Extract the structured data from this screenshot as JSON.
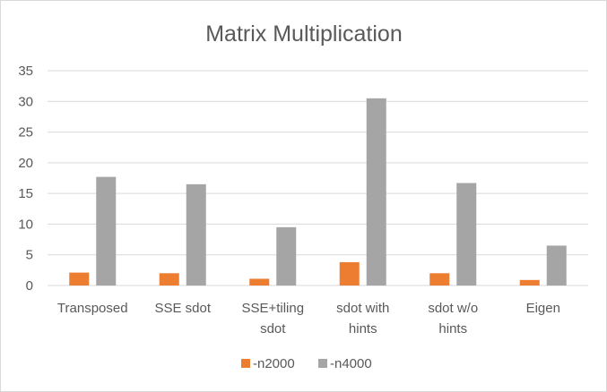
{
  "chart_data": {
    "type": "bar",
    "title": "Matrix Multiplication",
    "xlabel": "",
    "ylabel": "",
    "categories": [
      [
        "Transposed"
      ],
      [
        "SSE sdot"
      ],
      [
        "SSE+tiling",
        "sdot"
      ],
      [
        "sdot with",
        "hints"
      ],
      [
        "sdot w/o",
        "hints"
      ],
      [
        "Eigen"
      ]
    ],
    "series": [
      {
        "name": "-n2000",
        "values": [
          2.1,
          2.0,
          1.1,
          3.8,
          2.0,
          0.9
        ],
        "color": "#ed7d31"
      },
      {
        "name": "-n4000",
        "values": [
          17.7,
          16.5,
          9.5,
          30.5,
          16.7,
          6.5
        ],
        "color": "#a5a5a5"
      }
    ],
    "ylim": [
      0,
      35
    ],
    "yticks": [
      0,
      5,
      10,
      15,
      20,
      25,
      30,
      35
    ],
    "grid": true,
    "gridColor": "#d9d9d9",
    "legend": "bottom"
  }
}
